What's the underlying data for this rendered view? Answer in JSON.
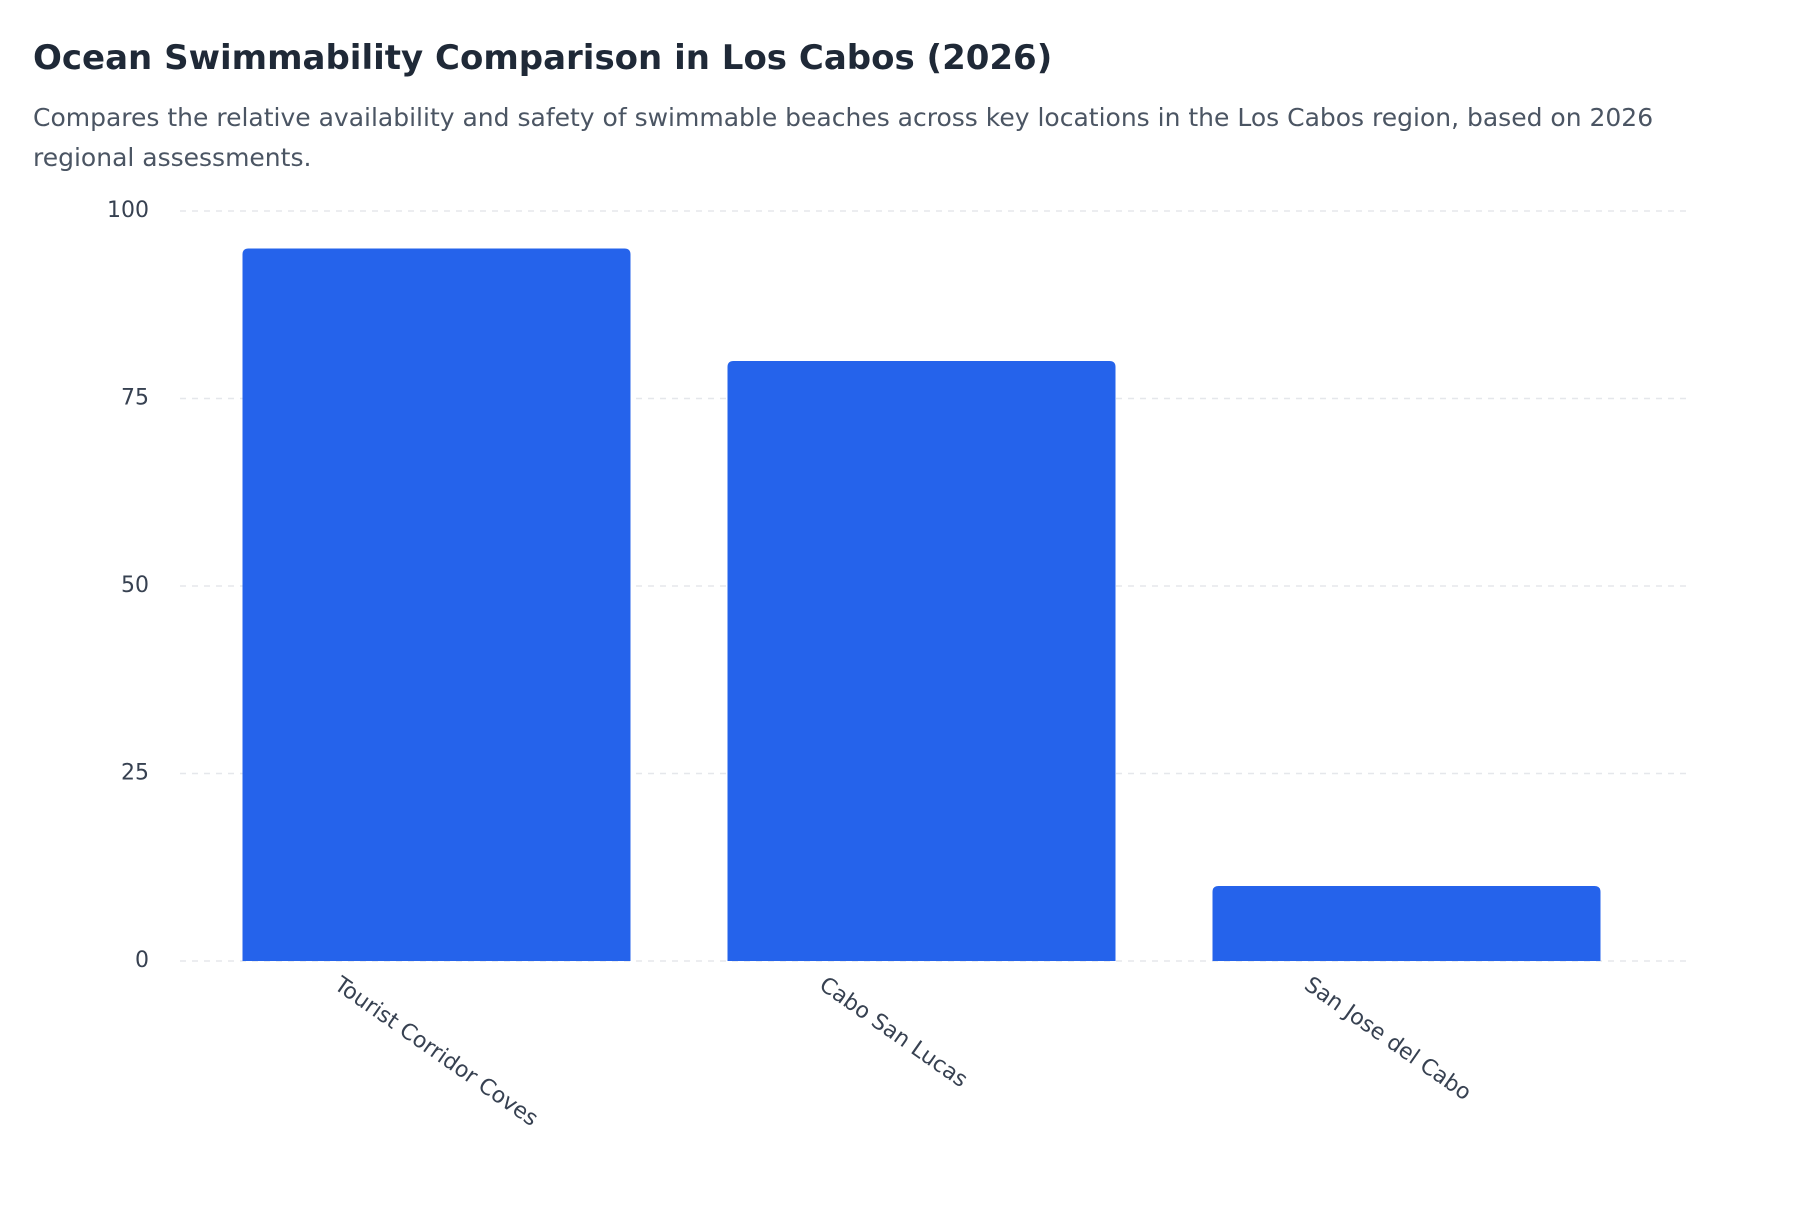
{
  "chart_data": {
    "type": "bar",
    "title": "Ocean Swimmability Comparison in Los Cabos (2026)",
    "subtitle": "Compares the relative availability and safety of swimmable beaches across key locations in the Los Cabos region, based on 2026 regional assessments.",
    "categories": [
      "Tourist Corridor Coves",
      "Cabo San Lucas",
      "San Jose del Cabo"
    ],
    "values": [
      95,
      80,
      10
    ],
    "color": "#2563eb",
    "ylim": [
      0,
      100
    ],
    "yticks": [
      0,
      25,
      50,
      75,
      100
    ],
    "grid": true
  }
}
